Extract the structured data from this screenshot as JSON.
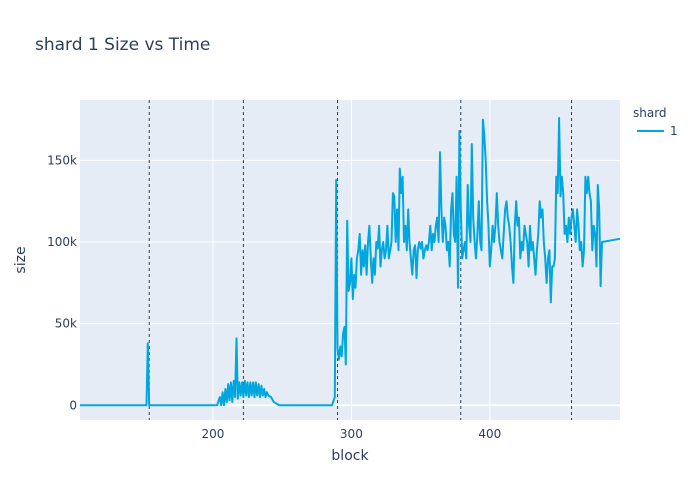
{
  "chart_data": {
    "type": "line",
    "title": "shard 1 Size vs Time",
    "xlabel": "block",
    "ylabel": "size",
    "xlim": [
      104,
      494
    ],
    "ylim": [
      -9000,
      187000
    ],
    "x_ticks": [
      200,
      300,
      400
    ],
    "x_tick_labels": [
      "200",
      "300",
      "400"
    ],
    "y_ticks": [
      0,
      50000,
      100000,
      150000
    ],
    "y_tick_labels": [
      "0",
      "50k",
      "100k",
      "150k"
    ],
    "grid": true,
    "legend_title": "shard",
    "legend_position": "top-right",
    "vlines": [
      154,
      222,
      290,
      379,
      459
    ],
    "series": [
      {
        "name": "1",
        "color": "#00a6de",
        "points": [
          [
            104,
            0
          ],
          [
            152,
            0
          ],
          [
            153,
            38000
          ],
          [
            154,
            0
          ],
          [
            203,
            0
          ],
          [
            205,
            5000
          ],
          [
            206,
            0
          ],
          [
            207,
            8000
          ],
          [
            208,
            0
          ],
          [
            209,
            10000
          ],
          [
            210,
            2000
          ],
          [
            211,
            13000
          ],
          [
            212,
            3000
          ],
          [
            213,
            14000
          ],
          [
            214,
            2000
          ],
          [
            215,
            15000
          ],
          [
            216,
            5000
          ],
          [
            217,
            41000
          ],
          [
            218,
            4000
          ],
          [
            219,
            14000
          ],
          [
            220,
            6000
          ],
          [
            221,
            14000
          ],
          [
            222,
            5000
          ],
          [
            223,
            15000
          ],
          [
            224,
            6000
          ],
          [
            225,
            14000
          ],
          [
            226,
            5000
          ],
          [
            227,
            14000
          ],
          [
            228,
            6000
          ],
          [
            229,
            14000
          ],
          [
            230,
            5000
          ],
          [
            231,
            14000
          ],
          [
            232,
            6000
          ],
          [
            233,
            13000
          ],
          [
            234,
            5000
          ],
          [
            235,
            12000
          ],
          [
            236,
            6000
          ],
          [
            237,
            10000
          ],
          [
            238,
            5000
          ],
          [
            239,
            8000
          ],
          [
            240,
            6000
          ],
          [
            242,
            5000
          ],
          [
            244,
            2000
          ],
          [
            246,
            1000
          ],
          [
            248,
            0
          ],
          [
            286,
            0
          ],
          [
            288,
            5000
          ],
          [
            289,
            138000
          ],
          [
            290,
            35000
          ],
          [
            291,
            28000
          ],
          [
            292,
            36000
          ],
          [
            293,
            30000
          ],
          [
            294,
            44000
          ],
          [
            295,
            48000
          ],
          [
            296,
            25000
          ],
          [
            297,
            113000
          ],
          [
            298,
            70000
          ],
          [
            299,
            75000
          ],
          [
            300,
            90000
          ],
          [
            301,
            65000
          ],
          [
            302,
            80000
          ],
          [
            303,
            72000
          ],
          [
            304,
            90000
          ],
          [
            305,
            95000
          ],
          [
            306,
            105000
          ],
          [
            307,
            80000
          ],
          [
            308,
            95000
          ],
          [
            309,
            85000
          ],
          [
            310,
            98000
          ],
          [
            311,
            80000
          ],
          [
            312,
            100000
          ],
          [
            313,
            110000
          ],
          [
            314,
            90000
          ],
          [
            315,
            75000
          ],
          [
            316,
            90000
          ],
          [
            317,
            80000
          ],
          [
            318,
            100000
          ],
          [
            319,
            96000
          ],
          [
            320,
            110000
          ],
          [
            321,
            85000
          ],
          [
            322,
            95000
          ],
          [
            323,
            100000
          ],
          [
            324,
            90000
          ],
          [
            325,
            95000
          ],
          [
            326,
            110000
          ],
          [
            327,
            90000
          ],
          [
            328,
            95000
          ],
          [
            329,
            100000
          ],
          [
            330,
            130000
          ],
          [
            331,
            128000
          ],
          [
            332,
            100000
          ],
          [
            333,
            120000
          ],
          [
            334,
            95000
          ],
          [
            335,
            145000
          ],
          [
            336,
            130000
          ],
          [
            337,
            140000
          ],
          [
            338,
            100000
          ],
          [
            339,
            110000
          ],
          [
            340,
            95000
          ],
          [
            341,
            120000
          ],
          [
            342,
            100000
          ],
          [
            343,
            90000
          ],
          [
            344,
            80000
          ],
          [
            345,
            95000
          ],
          [
            346,
            98000
          ],
          [
            347,
            78000
          ],
          [
            348,
            95000
          ],
          [
            349,
            100000
          ],
          [
            350,
            96000
          ],
          [
            351,
            100000
          ],
          [
            352,
            90000
          ],
          [
            353,
            95000
          ],
          [
            354,
            98000
          ],
          [
            355,
            95000
          ],
          [
            356,
            100000
          ],
          [
            357,
            110000
          ],
          [
            358,
            95000
          ],
          [
            359,
            105000
          ],
          [
            360,
            100000
          ],
          [
            361,
            110000
          ],
          [
            362,
            115000
          ],
          [
            363,
            100000
          ],
          [
            364,
            155000
          ],
          [
            365,
            120000
          ],
          [
            366,
            100000
          ],
          [
            367,
            115000
          ],
          [
            368,
            110000
          ],
          [
            369,
            95000
          ],
          [
            370,
            100000
          ],
          [
            371,
            85000
          ],
          [
            372,
            120000
          ],
          [
            373,
            130000
          ],
          [
            374,
            105000
          ],
          [
            375,
            100000
          ],
          [
            376,
            140000
          ],
          [
            377,
            72000
          ],
          [
            378,
            168000
          ],
          [
            379,
            120000
          ],
          [
            380,
            90000
          ],
          [
            381,
            95000
          ],
          [
            382,
            100000
          ],
          [
            383,
            90000
          ],
          [
            384,
            135000
          ],
          [
            385,
            110000
          ],
          [
            386,
            100000
          ],
          [
            387,
            160000
          ],
          [
            388,
            115000
          ],
          [
            389,
            100000
          ],
          [
            390,
            90000
          ],
          [
            391,
            105000
          ],
          [
            392,
            125000
          ],
          [
            393,
            100000
          ],
          [
            394,
            95000
          ],
          [
            395,
            175000
          ],
          [
            396,
            165000
          ],
          [
            397,
            150000
          ],
          [
            398,
            125000
          ],
          [
            399,
            110000
          ],
          [
            400,
            85000
          ],
          [
            401,
            95000
          ],
          [
            402,
            110000
          ],
          [
            403,
            100000
          ],
          [
            404,
            110000
          ],
          [
            405,
            130000
          ],
          [
            406,
            110000
          ],
          [
            407,
            100000
          ],
          [
            408,
            95000
          ],
          [
            409,
            90000
          ],
          [
            410,
            105000
          ],
          [
            411,
            120000
          ],
          [
            412,
            125000
          ],
          [
            413,
            115000
          ],
          [
            414,
            110000
          ],
          [
            415,
            100000
          ],
          [
            416,
            85000
          ],
          [
            417,
            75000
          ],
          [
            418,
            110000
          ],
          [
            419,
            125000
          ],
          [
            420,
            110000
          ],
          [
            421,
            115000
          ],
          [
            422,
            90000
          ],
          [
            423,
            100000
          ],
          [
            424,
            95000
          ],
          [
            425,
            110000
          ],
          [
            426,
            105000
          ],
          [
            427,
            100000
          ],
          [
            428,
            85000
          ],
          [
            429,
            110000
          ],
          [
            430,
            95000
          ],
          [
            431,
            100000
          ],
          [
            432,
            90000
          ],
          [
            433,
            80000
          ],
          [
            434,
            95000
          ],
          [
            435,
            105000
          ],
          [
            436,
            125000
          ],
          [
            437,
            115000
          ],
          [
            438,
            120000
          ],
          [
            439,
            100000
          ],
          [
            440,
            90000
          ],
          [
            441,
            75000
          ],
          [
            442,
            90000
          ],
          [
            443,
            95000
          ],
          [
            444,
            63000
          ],
          [
            445,
            85000
          ],
          [
            446,
            85000
          ],
          [
            447,
            90000
          ],
          [
            448,
            140000
          ],
          [
            449,
            130000
          ],
          [
            450,
            176000
          ],
          [
            451,
            128000
          ],
          [
            452,
            140000
          ],
          [
            453,
            130000
          ],
          [
            454,
            105000
          ],
          [
            455,
            110000
          ],
          [
            456,
            100000
          ],
          [
            457,
            115000
          ],
          [
            458,
            105000
          ],
          [
            459,
            115000
          ],
          [
            460,
            120000
          ],
          [
            461,
            110000
          ],
          [
            462,
            100000
          ],
          [
            463,
            120000
          ],
          [
            464,
            110000
          ],
          [
            465,
            95000
          ],
          [
            466,
            100000
          ],
          [
            467,
            85000
          ],
          [
            468,
            95000
          ],
          [
            469,
            140000
          ],
          [
            470,
            130000
          ],
          [
            471,
            140000
          ],
          [
            472,
            130000
          ],
          [
            473,
            125000
          ],
          [
            474,
            95000
          ],
          [
            475,
            110000
          ],
          [
            476,
            105000
          ],
          [
            477,
            85000
          ],
          [
            478,
            135000
          ],
          [
            479,
            120000
          ],
          [
            480,
            73000
          ],
          [
            481,
            100000
          ],
          [
            494,
            102000
          ]
        ]
      }
    ]
  }
}
